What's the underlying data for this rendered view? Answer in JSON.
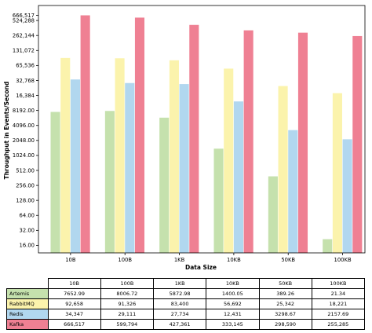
{
  "chart_data": {
    "type": "bar",
    "ylabel": "Throughput in Events/Second",
    "xlabel": "Data Size",
    "yscale": "log2",
    "ylim": [
      11.3,
      1050000
    ],
    "grid": false,
    "categories": [
      "10B",
      "100B",
      "1KB",
      "10KB",
      "50KB",
      "100KB"
    ],
    "yticks": [
      16,
      32,
      64,
      128,
      256,
      512,
      1024,
      2048,
      4096,
      8192,
      16384,
      32768,
      65536,
      131072,
      262144,
      524288,
      666517
    ],
    "ytick_labels": [
      "16.00",
      "32.00",
      "64.00",
      "128.00",
      "256.00",
      "512.00",
      "1024.00",
      "2048.00",
      "4096.00",
      "8192.00",
      "16,384",
      "32,768",
      "65,536",
      "131,072",
      "262,144",
      "524,288",
      "666,517"
    ],
    "series": [
      {
        "name": "Artemis",
        "color": "#c5e1ad",
        "values": [
          7652.99,
          8006.72,
          5872.98,
          1400.05,
          389.26,
          21.34
        ],
        "labels": [
          "7652.99",
          "8006.72",
          "5872.98",
          "1400.05",
          "389.26",
          "21.34"
        ]
      },
      {
        "name": "RabbitMQ",
        "color": "#fbf3ac",
        "values": [
          92658,
          91326,
          83400,
          56692,
          25342,
          18221
        ],
        "labels": [
          "92,658",
          "91,326",
          "83,400",
          "56,692",
          "25,342",
          "18,221"
        ]
      },
      {
        "name": "Redis",
        "color": "#b1d7ef",
        "values": [
          34347,
          29111,
          27734,
          12431,
          3298.67,
          2157.69
        ],
        "labels": [
          "34,347",
          "29,111",
          "27,734",
          "12,431",
          "3298.67",
          "2157.69"
        ]
      },
      {
        "name": "Kafka",
        "color": "#ef8093",
        "values": [
          666517,
          599794,
          427361,
          333145,
          298590,
          255285
        ],
        "labels": [
          "666,517",
          "599,794",
          "427,361",
          "333,145",
          "298,590",
          "255,285"
        ]
      }
    ]
  }
}
